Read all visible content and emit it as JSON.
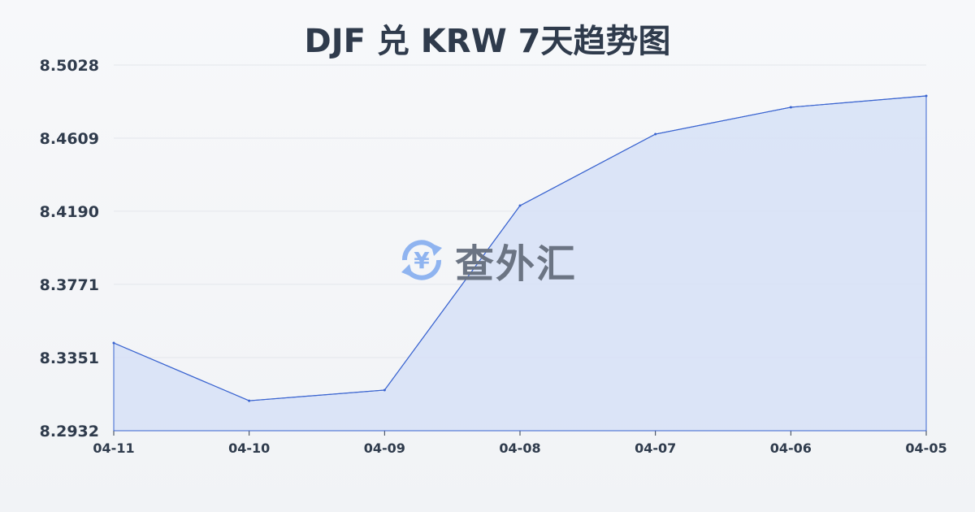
{
  "chart_data": {
    "type": "area",
    "title": "DJF 兑 KRW 7天趋势图",
    "categories": [
      "04-11",
      "04-10",
      "04-09",
      "04-08",
      "04-07",
      "04-06",
      "04-05"
    ],
    "values": [
      8.3435,
      8.3104,
      8.3165,
      8.4222,
      8.4632,
      8.4786,
      8.4851
    ],
    "yticks": [
      "8.2932",
      "8.3351",
      "8.3771",
      "8.4190",
      "8.4609",
      "8.5028"
    ],
    "ylim": [
      8.2932,
      8.5028
    ],
    "grid": true,
    "line_color": "#3a64d0",
    "fill_color": "#d4e0f6"
  },
  "watermark": {
    "text": "查外汇",
    "icon": "yen-exchange-icon",
    "color": "#8fb4f0"
  }
}
